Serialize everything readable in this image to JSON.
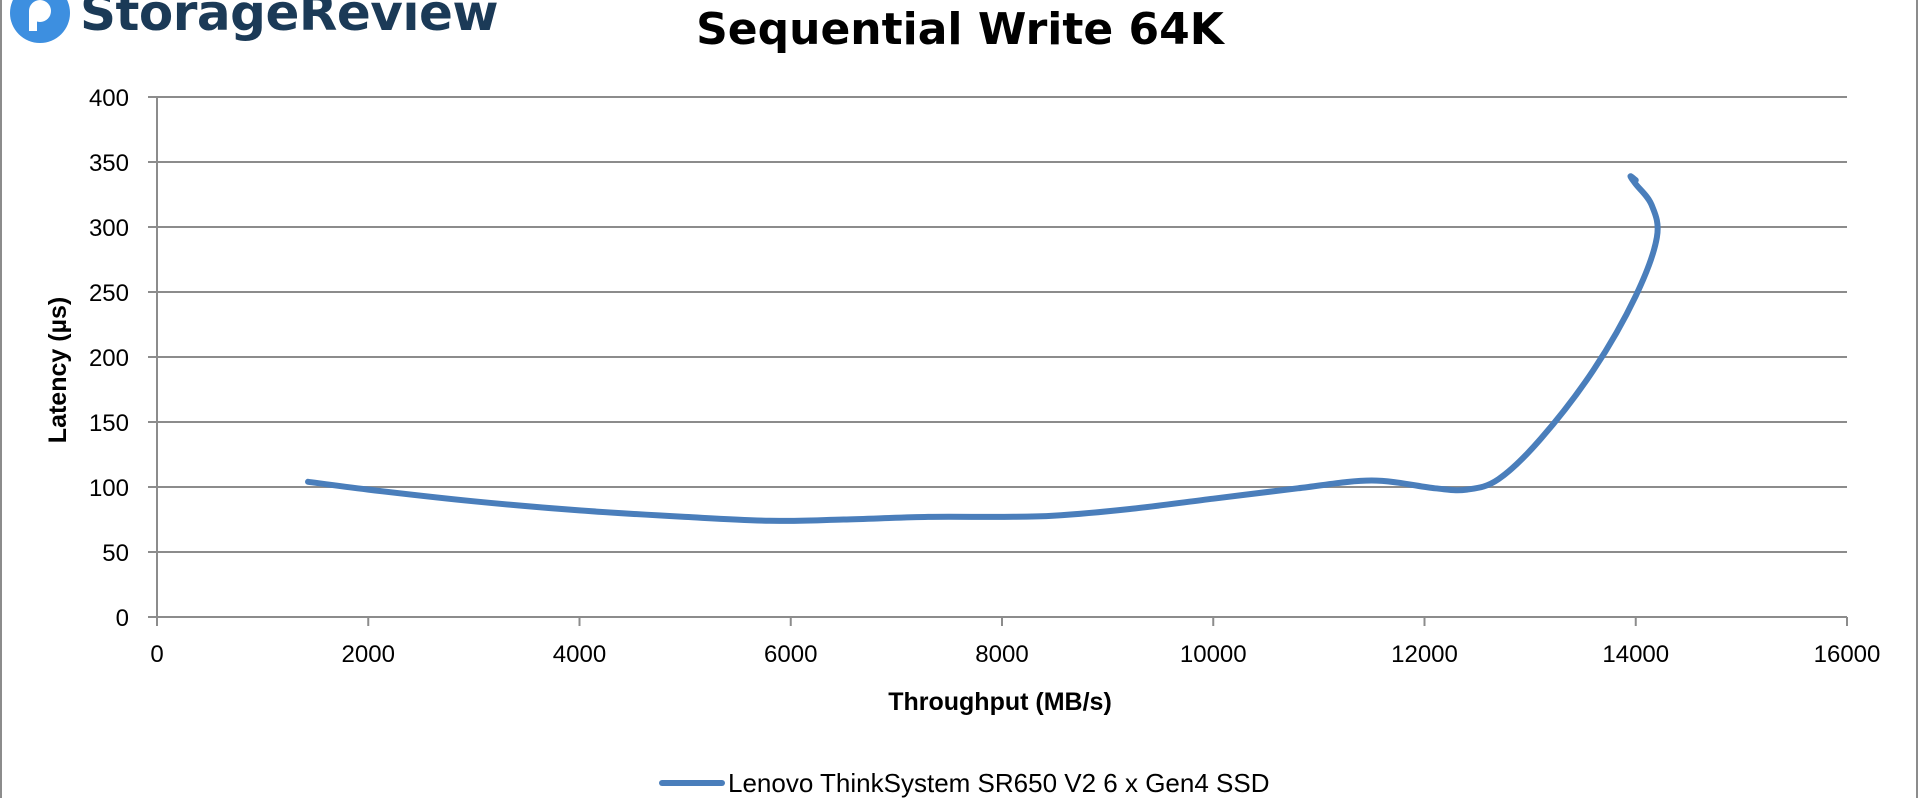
{
  "logo": {
    "text": "StorageReview"
  },
  "chart_data": {
    "type": "line",
    "title": "Sequential Write 64K",
    "xlabel": "Throughput (MB/s)",
    "ylabel": "Latency (µs)",
    "xlim": [
      0,
      16000
    ],
    "ylim": [
      0,
      400
    ],
    "xticks": [
      0,
      2000,
      4000,
      6000,
      8000,
      10000,
      12000,
      14000,
      16000
    ],
    "yticks": [
      0,
      50,
      100,
      150,
      200,
      250,
      300,
      350,
      400
    ],
    "grid": "horizontal",
    "legend_position": "bottom",
    "series": [
      {
        "name": "Lenovo ThinkSystem SR650 V2 6 x Gen4 SSD",
        "color": "#4a7ebb",
        "points": [
          [
            1430,
            104
          ],
          [
            2000,
            98
          ],
          [
            3000,
            89
          ],
          [
            4000,
            82
          ],
          [
            5000,
            77
          ],
          [
            5800,
            74
          ],
          [
            6500,
            75
          ],
          [
            7300,
            77
          ],
          [
            8000,
            77
          ],
          [
            8500,
            78
          ],
          [
            9200,
            83
          ],
          [
            10000,
            91
          ],
          [
            10800,
            99
          ],
          [
            11500,
            105
          ],
          [
            12100,
            99
          ],
          [
            12400,
            98
          ],
          [
            12700,
            106
          ],
          [
            13100,
            137
          ],
          [
            13600,
            190
          ],
          [
            14000,
            247
          ],
          [
            14200,
            292
          ],
          [
            14150,
            317
          ],
          [
            14000,
            333
          ],
          [
            13950,
            339
          ],
          [
            14000,
            336
          ]
        ]
      }
    ]
  }
}
